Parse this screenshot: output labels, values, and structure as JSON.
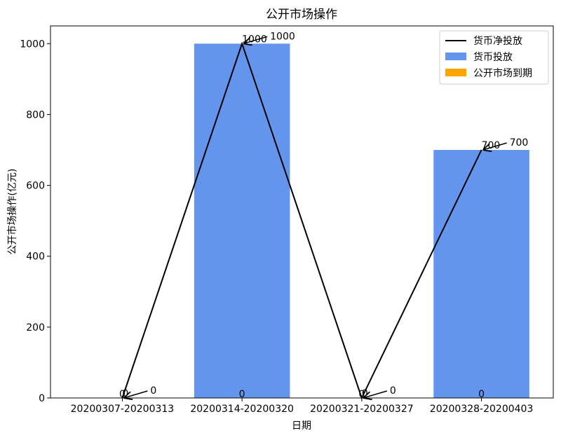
{
  "chart_data": {
    "type": "bar",
    "title": "公开市场操作",
    "x_label": "日期",
    "y_label": "公开市场操作(亿元)",
    "categories": [
      "20200307-20200313",
      "20200314-20200320",
      "20200321-20200327",
      "20200328-20200403"
    ],
    "series": [
      {
        "name": "货币净投放",
        "type": "line",
        "color": "#000000",
        "values": [
          0,
          1000,
          0,
          700
        ]
      },
      {
        "name": "货币投放",
        "type": "bar",
        "color": "#6495ed",
        "values": [
          0,
          1000,
          0,
          700
        ]
      },
      {
        "name": "公开市场到期",
        "type": "bar",
        "color": "#ffa500",
        "values": [
          0,
          0,
          0,
          0
        ]
      }
    ],
    "ylim": [
      0,
      1050
    ],
    "yticks": [
      0,
      200,
      400,
      600,
      800,
      1000
    ],
    "legend": "upper right"
  }
}
